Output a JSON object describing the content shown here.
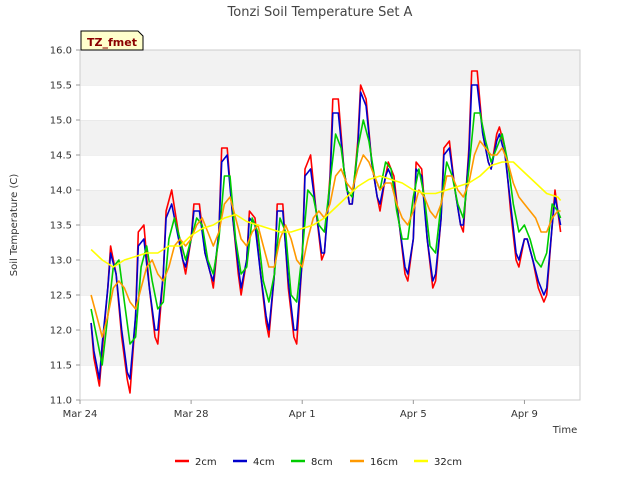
{
  "chart_data": {
    "type": "line",
    "title": "Tonzi Soil Temperature Set A",
    "xlabel": "Time",
    "ylabel": "Soil Temperature (C)",
    "badge": "TZ_fmet",
    "x_unit": "date (day of 2010 series, Mar 24 = 0)",
    "x_ticks": [
      {
        "label": "Mar 24",
        "x": 0
      },
      {
        "label": "Mar 28",
        "x": 4
      },
      {
        "label": "Apr 1",
        "x": 8
      },
      {
        "label": "Apr 5",
        "x": 12
      },
      {
        "label": "Apr 9",
        "x": 16
      }
    ],
    "xlim": [
      0,
      18
    ],
    "ylim": [
      11.0,
      16.0
    ],
    "y_ticks": [
      "11.0",
      "11.5",
      "12.0",
      "12.5",
      "13.0",
      "13.5",
      "14.0",
      "14.5",
      "15.0",
      "15.5",
      "16.0"
    ],
    "grid": "horizontal bands",
    "legend_position": "bottom",
    "series": [
      {
        "name": "2cm",
        "color": "#ff0000",
        "x": [
          0.4,
          0.5,
          0.7,
          0.8,
          1.0,
          1.1,
          1.3,
          1.5,
          1.7,
          1.8,
          2.0,
          2.1,
          2.3,
          2.5,
          2.7,
          2.8,
          3.0,
          3.1,
          3.3,
          3.5,
          3.7,
          3.8,
          4.0,
          4.1,
          4.3,
          4.5,
          4.7,
          4.8,
          5.0,
          5.1,
          5.3,
          5.5,
          5.7,
          5.8,
          6.0,
          6.1,
          6.3,
          6.5,
          6.7,
          6.8,
          7.0,
          7.1,
          7.3,
          7.5,
          7.7,
          7.8,
          8.0,
          8.1,
          8.3,
          8.5,
          8.7,
          8.8,
          9.0,
          9.1,
          9.3,
          9.5,
          9.7,
          9.8,
          10.0,
          10.1,
          10.3,
          10.5,
          10.7,
          10.8,
          11.0,
          11.1,
          11.3,
          11.5,
          11.7,
          11.8,
          12.0,
          12.1,
          12.3,
          12.5,
          12.7,
          12.8,
          13.0,
          13.1,
          13.3,
          13.5,
          13.7,
          13.8,
          14.0,
          14.1,
          14.3,
          14.5,
          14.7,
          14.8,
          15.0,
          15.1,
          15.3,
          15.5,
          15.7,
          15.8,
          16.0,
          16.1,
          16.3,
          16.5,
          16.7,
          16.8,
          17.0,
          17.1,
          17.3
        ],
        "y": [
          12.1,
          11.6,
          11.2,
          11.7,
          12.6,
          13.2,
          12.8,
          11.9,
          11.3,
          11.1,
          12.2,
          13.4,
          13.5,
          12.6,
          11.9,
          11.8,
          12.8,
          13.7,
          14.0,
          13.5,
          13.0,
          12.8,
          13.3,
          13.8,
          13.8,
          13.1,
          12.8,
          12.6,
          13.4,
          14.6,
          14.6,
          13.6,
          12.8,
          12.5,
          13.0,
          13.7,
          13.6,
          12.8,
          12.1,
          11.9,
          12.8,
          13.8,
          13.8,
          12.6,
          11.9,
          11.8,
          13.0,
          14.3,
          14.5,
          13.7,
          13.0,
          13.1,
          14.2,
          15.3,
          15.3,
          14.3,
          13.8,
          13.8,
          14.7,
          15.5,
          15.3,
          14.4,
          13.9,
          13.7,
          14.2,
          14.4,
          14.2,
          13.5,
          12.8,
          12.7,
          13.3,
          14.4,
          14.3,
          13.3,
          12.6,
          12.7,
          13.6,
          14.6,
          14.7,
          14.0,
          13.5,
          13.4,
          14.6,
          15.7,
          15.7,
          14.8,
          14.4,
          14.3,
          14.8,
          14.9,
          14.6,
          13.7,
          13.0,
          12.9,
          13.3,
          13.3,
          13.0,
          12.6,
          12.4,
          12.5,
          13.5,
          14.0,
          13.4
        ]
      },
      {
        "name": "4cm",
        "color": "#0000cc",
        "x": [
          0.4,
          0.5,
          0.7,
          0.8,
          1.0,
          1.1,
          1.3,
          1.5,
          1.7,
          1.8,
          2.0,
          2.1,
          2.3,
          2.5,
          2.7,
          2.8,
          3.0,
          3.1,
          3.3,
          3.5,
          3.7,
          3.8,
          4.0,
          4.1,
          4.3,
          4.5,
          4.7,
          4.8,
          5.0,
          5.1,
          5.3,
          5.5,
          5.7,
          5.8,
          6.0,
          6.1,
          6.3,
          6.5,
          6.7,
          6.8,
          7.0,
          7.1,
          7.3,
          7.5,
          7.7,
          7.8,
          8.0,
          8.1,
          8.3,
          8.5,
          8.7,
          8.8,
          9.0,
          9.1,
          9.3,
          9.5,
          9.7,
          9.8,
          10.0,
          10.1,
          10.3,
          10.5,
          10.7,
          10.8,
          11.0,
          11.1,
          11.3,
          11.5,
          11.7,
          11.8,
          12.0,
          12.1,
          12.3,
          12.5,
          12.7,
          12.8,
          13.0,
          13.1,
          13.3,
          13.5,
          13.7,
          13.8,
          14.0,
          14.1,
          14.3,
          14.5,
          14.7,
          14.8,
          15.0,
          15.1,
          15.3,
          15.5,
          15.7,
          15.8,
          16.0,
          16.1,
          16.3,
          16.5,
          16.7,
          16.8,
          17.0,
          17.1,
          17.3
        ],
        "y": [
          12.1,
          11.7,
          11.3,
          11.8,
          12.6,
          13.1,
          12.8,
          12.0,
          11.4,
          11.3,
          12.2,
          13.2,
          13.3,
          12.6,
          12.0,
          12.0,
          12.8,
          13.6,
          13.8,
          13.4,
          13.0,
          12.9,
          13.3,
          13.7,
          13.7,
          13.1,
          12.8,
          12.7,
          13.4,
          14.4,
          14.5,
          13.6,
          12.9,
          12.6,
          13.0,
          13.6,
          13.5,
          12.8,
          12.2,
          12.0,
          12.8,
          13.7,
          13.7,
          12.7,
          12.0,
          12.0,
          13.0,
          14.2,
          14.3,
          13.7,
          13.1,
          13.1,
          14.1,
          15.1,
          15.1,
          14.3,
          13.8,
          13.8,
          14.6,
          15.4,
          15.2,
          14.4,
          13.9,
          13.8,
          14.2,
          14.3,
          14.1,
          13.5,
          12.9,
          12.8,
          13.3,
          14.3,
          14.2,
          13.3,
          12.7,
          12.8,
          13.6,
          14.5,
          14.6,
          14.0,
          13.5,
          13.5,
          14.5,
          15.5,
          15.5,
          14.8,
          14.4,
          14.3,
          14.7,
          14.8,
          14.5,
          13.8,
          13.1,
          13.0,
          13.3,
          13.3,
          13.0,
          12.7,
          12.5,
          12.6,
          13.5,
          13.9,
          13.5
        ]
      },
      {
        "name": "8cm",
        "color": "#00cc00",
        "x": [
          0.4,
          0.6,
          0.8,
          1.0,
          1.2,
          1.4,
          1.6,
          1.8,
          2.0,
          2.2,
          2.4,
          2.6,
          2.8,
          3.0,
          3.2,
          3.4,
          3.6,
          3.8,
          4.0,
          4.2,
          4.4,
          4.6,
          4.8,
          5.0,
          5.2,
          5.4,
          5.6,
          5.8,
          6.0,
          6.2,
          6.4,
          6.6,
          6.8,
          7.0,
          7.2,
          7.4,
          7.6,
          7.8,
          8.0,
          8.2,
          8.4,
          8.6,
          8.8,
          9.0,
          9.2,
          9.4,
          9.6,
          9.8,
          10.0,
          10.2,
          10.4,
          10.6,
          10.8,
          11.0,
          11.2,
          11.4,
          11.6,
          11.8,
          12.0,
          12.2,
          12.4,
          12.6,
          12.8,
          13.0,
          13.2,
          13.4,
          13.6,
          13.8,
          14.0,
          14.2,
          14.4,
          14.6,
          14.8,
          15.0,
          15.2,
          15.4,
          15.6,
          15.8,
          16.0,
          16.2,
          16.4,
          16.6,
          16.8,
          17.0,
          17.2,
          17.3
        ],
        "y": [
          12.3,
          11.9,
          11.5,
          12.2,
          12.9,
          13.0,
          12.4,
          11.8,
          11.9,
          12.9,
          13.2,
          12.7,
          12.3,
          12.4,
          13.3,
          13.6,
          13.3,
          13.0,
          13.3,
          13.6,
          13.5,
          13.0,
          12.8,
          13.3,
          14.2,
          14.2,
          13.3,
          12.8,
          12.9,
          13.6,
          13.4,
          12.7,
          12.4,
          12.8,
          13.6,
          13.4,
          12.5,
          12.4,
          13.1,
          14.0,
          13.9,
          13.5,
          13.4,
          14.1,
          14.8,
          14.6,
          14.0,
          13.9,
          14.6,
          15.0,
          14.7,
          14.2,
          14.0,
          14.4,
          14.3,
          13.7,
          13.3,
          13.3,
          13.9,
          14.3,
          13.9,
          13.2,
          13.1,
          13.8,
          14.4,
          14.2,
          13.8,
          13.6,
          14.3,
          15.1,
          15.1,
          14.7,
          14.4,
          14.6,
          14.8,
          14.4,
          13.8,
          13.4,
          13.5,
          13.3,
          13.0,
          12.9,
          13.1,
          13.8,
          13.7,
          13.6
        ]
      },
      {
        "name": "16cm",
        "color": "#ff9900",
        "x": [
          0.4,
          0.6,
          0.8,
          1.0,
          1.2,
          1.4,
          1.6,
          1.8,
          2.0,
          2.2,
          2.4,
          2.6,
          2.8,
          3.0,
          3.2,
          3.4,
          3.6,
          3.8,
          4.0,
          4.2,
          4.4,
          4.6,
          4.8,
          5.0,
          5.2,
          5.4,
          5.6,
          5.8,
          6.0,
          6.2,
          6.4,
          6.6,
          6.8,
          7.0,
          7.2,
          7.4,
          7.6,
          7.8,
          8.0,
          8.2,
          8.4,
          8.6,
          8.8,
          9.0,
          9.2,
          9.4,
          9.6,
          9.8,
          10.0,
          10.2,
          10.4,
          10.6,
          10.8,
          11.0,
          11.2,
          11.4,
          11.6,
          11.8,
          12.0,
          12.2,
          12.4,
          12.6,
          12.8,
          13.0,
          13.2,
          13.4,
          13.6,
          13.8,
          14.0,
          14.2,
          14.4,
          14.6,
          14.8,
          15.0,
          15.2,
          15.4,
          15.6,
          15.8,
          16.0,
          16.2,
          16.4,
          16.6,
          16.8,
          17.0,
          17.2,
          17.3
        ],
        "y": [
          12.5,
          12.2,
          11.9,
          12.2,
          12.6,
          12.7,
          12.6,
          12.4,
          12.3,
          12.6,
          12.9,
          13.0,
          12.8,
          12.7,
          12.9,
          13.2,
          13.3,
          13.2,
          13.3,
          13.5,
          13.6,
          13.4,
          13.2,
          13.4,
          13.8,
          13.9,
          13.6,
          13.3,
          13.2,
          13.4,
          13.5,
          13.2,
          12.9,
          12.9,
          13.3,
          13.5,
          13.3,
          13.0,
          12.9,
          13.3,
          13.6,
          13.7,
          13.6,
          13.8,
          14.2,
          14.3,
          14.1,
          14.0,
          14.3,
          14.5,
          14.4,
          14.2,
          14.0,
          14.1,
          14.1,
          13.8,
          13.6,
          13.5,
          13.7,
          14.0,
          13.9,
          13.7,
          13.6,
          13.8,
          14.2,
          14.2,
          14.0,
          13.9,
          14.1,
          14.5,
          14.7,
          14.6,
          14.5,
          14.5,
          14.6,
          14.4,
          14.1,
          13.9,
          13.8,
          13.7,
          13.6,
          13.4,
          13.4,
          13.6,
          13.7,
          13.7
        ]
      },
      {
        "name": "32cm",
        "color": "#ffff00",
        "x": [
          0.4,
          0.8,
          1.2,
          1.6,
          2.0,
          2.4,
          2.8,
          3.2,
          3.6,
          4.0,
          4.4,
          4.8,
          5.2,
          5.6,
          6.0,
          6.4,
          6.8,
          7.2,
          7.6,
          8.0,
          8.4,
          8.8,
          9.2,
          9.6,
          10.0,
          10.4,
          10.8,
          11.2,
          11.6,
          12.0,
          12.4,
          12.8,
          13.2,
          13.6,
          14.0,
          14.4,
          14.8,
          15.2,
          15.6,
          16.0,
          16.4,
          16.8,
          17.2,
          17.3
        ],
        "y": [
          13.15,
          13.0,
          12.9,
          13.0,
          13.05,
          13.1,
          13.1,
          13.2,
          13.2,
          13.35,
          13.45,
          13.5,
          13.6,
          13.65,
          13.55,
          13.5,
          13.45,
          13.4,
          13.4,
          13.45,
          13.5,
          13.6,
          13.75,
          13.9,
          14.05,
          14.15,
          14.2,
          14.15,
          14.1,
          14.0,
          13.95,
          13.95,
          14.0,
          14.05,
          14.1,
          14.2,
          14.35,
          14.4,
          14.4,
          14.25,
          14.1,
          13.95,
          13.9,
          13.85
        ]
      }
    ]
  }
}
